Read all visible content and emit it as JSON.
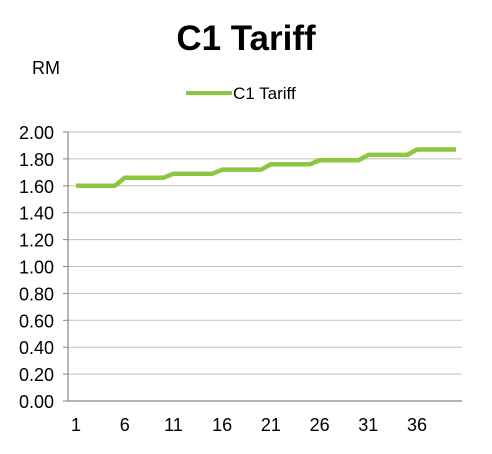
{
  "chart_data": {
    "type": "line",
    "title": "C1 Tariff",
    "ylabel": "RM",
    "xlabel": "",
    "ylim": [
      0,
      2.0
    ],
    "xlim": [
      1,
      40
    ],
    "y_ticks": [
      "0.00",
      "0.20",
      "0.40",
      "0.60",
      "0.80",
      "1.00",
      "1.20",
      "1.40",
      "1.60",
      "1.80",
      "2.00"
    ],
    "x_ticks": [
      "1",
      "6",
      "11",
      "16",
      "21",
      "26",
      "31",
      "36"
    ],
    "grid": "horizontal",
    "legend_position": "top-center",
    "series": [
      {
        "name": "C1 Tariff",
        "color": "#8DC63F",
        "x": [
          1,
          2,
          3,
          4,
          5,
          6,
          7,
          8,
          9,
          10,
          11,
          12,
          13,
          14,
          15,
          16,
          17,
          18,
          19,
          20,
          21,
          22,
          23,
          24,
          25,
          26,
          27,
          28,
          29,
          30,
          31,
          32,
          33,
          34,
          35,
          36,
          37,
          38,
          39,
          40
        ],
        "values": [
          1.6,
          1.6,
          1.6,
          1.6,
          1.6,
          1.66,
          1.66,
          1.66,
          1.66,
          1.66,
          1.69,
          1.69,
          1.69,
          1.69,
          1.69,
          1.72,
          1.72,
          1.72,
          1.72,
          1.72,
          1.76,
          1.76,
          1.76,
          1.76,
          1.76,
          1.79,
          1.79,
          1.79,
          1.79,
          1.79,
          1.83,
          1.83,
          1.83,
          1.83,
          1.83,
          1.87,
          1.87,
          1.87,
          1.87,
          1.87
        ]
      }
    ]
  }
}
